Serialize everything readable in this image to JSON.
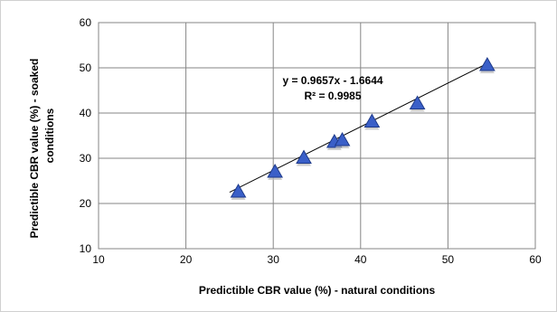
{
  "chart_data": {
    "type": "scatter",
    "title": "",
    "xlabel": "Predictible CBR value (%) - natural conditions",
    "ylabel_line1": "Predictible CBR value (%) - soaked",
    "ylabel_line2": "conditions",
    "xlim": [
      10,
      60
    ],
    "ylim": [
      10,
      60
    ],
    "xticks": [
      10,
      20,
      30,
      40,
      50,
      60
    ],
    "yticks": [
      10,
      20,
      30,
      40,
      50,
      60
    ],
    "grid": true,
    "legend": false,
    "series": [
      {
        "marker": "triangle",
        "color": "#3a5fc8",
        "points": [
          {
            "x": 26.0,
            "y": 22.8
          },
          {
            "x": 30.2,
            "y": 27.2
          },
          {
            "x": 33.5,
            "y": 30.3
          },
          {
            "x": 37.0,
            "y": 33.8
          },
          {
            "x": 37.9,
            "y": 34.2
          },
          {
            "x": 41.3,
            "y": 38.3
          },
          {
            "x": 46.5,
            "y": 42.3
          },
          {
            "x": 54.5,
            "y": 50.8
          }
        ]
      }
    ],
    "trendline": {
      "type": "linear",
      "slope": 0.9657,
      "intercept": -1.6644,
      "x_range": [
        25.0,
        54.5
      ],
      "equation": "y = 0.9657x - 1.6644",
      "r_squared": "R² = 0.9985",
      "color": "#000000"
    }
  }
}
